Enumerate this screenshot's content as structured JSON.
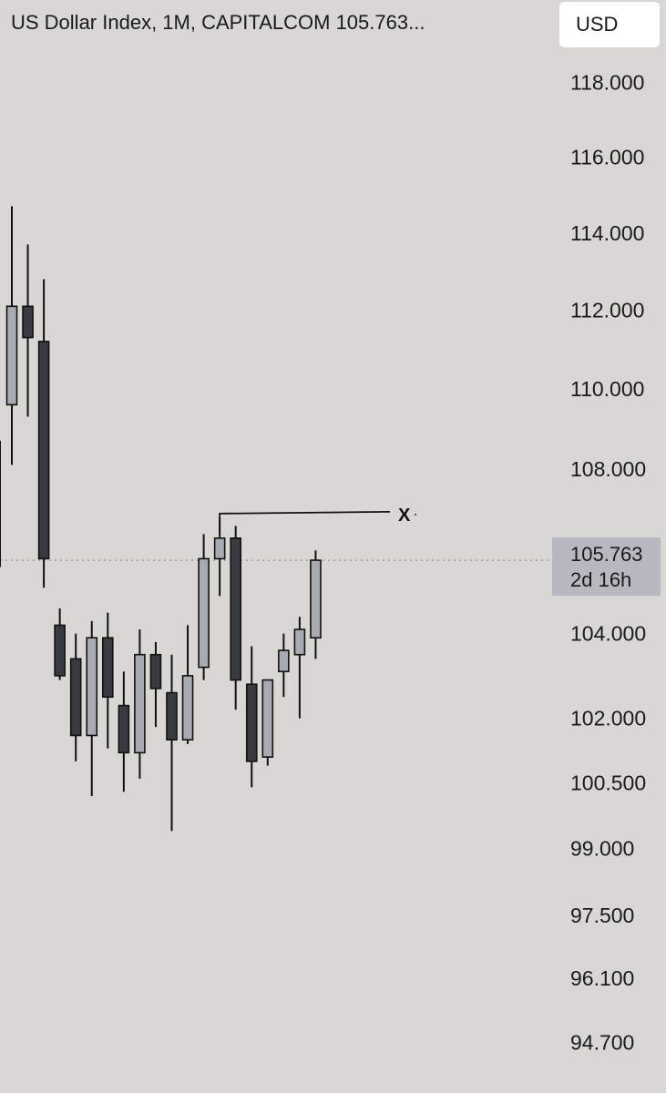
{
  "header": {
    "title": "US Dollar Index, 1M, CAPITALCOM  105.763..."
  },
  "currency_button": {
    "label": "USD"
  },
  "price_badge": {
    "price": "105.763",
    "countdown": "2d 16h"
  },
  "annotation": {
    "label": "X",
    "level": 106.9
  },
  "colors": {
    "background": "#d8d7d3",
    "bear_fill": "#3a3b40",
    "bull_fill": "#a9abb2",
    "outline": "#111111",
    "current_price_line": "#9a9aa6"
  },
  "chart_data": {
    "type": "candlestick",
    "title": "US Dollar Index, 1M, CAPITALCOM",
    "last_price": 105.763,
    "y_ticks": [
      "118.000",
      "116.000",
      "114.000",
      "112.000",
      "110.000",
      "108.000",
      "104.000",
      "102.000",
      "100.500",
      "99.000",
      "97.500",
      "96.100",
      "94.700"
    ],
    "y_scale": "log",
    "ylim": [
      94.0,
      119.5
    ],
    "candles": [
      {
        "o": 109.6,
        "h": 114.7,
        "l": 108.1,
        "c": 112.1
      },
      {
        "o": 112.1,
        "h": 113.7,
        "l": 109.3,
        "c": 111.3
      },
      {
        "o": 111.2,
        "h": 112.8,
        "l": 105.1,
        "c": 105.8
      },
      {
        "o": 104.2,
        "h": 104.6,
        "l": 102.9,
        "c": 103.0
      },
      {
        "o": 103.4,
        "h": 104.0,
        "l": 101.0,
        "c": 101.6
      },
      {
        "o": 101.6,
        "h": 104.3,
        "l": 100.2,
        "c": 103.9
      },
      {
        "o": 103.9,
        "h": 104.5,
        "l": 101.3,
        "c": 102.5
      },
      {
        "o": 102.3,
        "h": 103.1,
        "l": 100.3,
        "c": 101.2
      },
      {
        "o": 101.2,
        "h": 104.1,
        "l": 100.6,
        "c": 103.5
      },
      {
        "o": 103.5,
        "h": 103.8,
        "l": 101.8,
        "c": 102.7
      },
      {
        "o": 102.6,
        "h": 103.5,
        "l": 99.4,
        "c": 101.5
      },
      {
        "o": 101.5,
        "h": 104.2,
        "l": 101.4,
        "c": 103.0
      },
      {
        "o": 103.2,
        "h": 106.4,
        "l": 102.9,
        "c": 105.8
      },
      {
        "o": 105.8,
        "h": 106.8,
        "l": 104.9,
        "c": 106.3
      },
      {
        "o": 106.3,
        "h": 106.6,
        "l": 102.2,
        "c": 102.9
      },
      {
        "o": 102.8,
        "h": 103.7,
        "l": 100.4,
        "c": 101.0
      },
      {
        "o": 101.1,
        "h": 102.9,
        "l": 100.9,
        "c": 102.9
      },
      {
        "o": 103.1,
        "h": 104.0,
        "l": 102.5,
        "c": 103.6
      },
      {
        "o": 103.5,
        "h": 104.4,
        "l": 102.0,
        "c": 104.1
      },
      {
        "o": 103.9,
        "h": 106.0,
        "l": 103.4,
        "c": 105.763
      }
    ]
  }
}
